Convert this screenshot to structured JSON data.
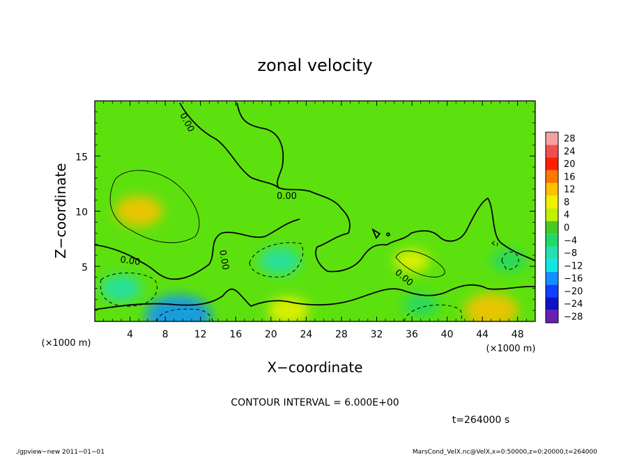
{
  "chart_data": {
    "type": "heatmap",
    "title": "zonal velocity",
    "xlabel": "X−coordinate",
    "ylabel": "Z−coordinate",
    "x_unit_label": "(×1000 m)",
    "y_unit_label": "(×1000 m)",
    "xlim": [
      0,
      50
    ],
    "ylim": [
      0,
      20
    ],
    "x_ticks": [
      "4",
      "8",
      "12",
      "16",
      "20",
      "24",
      "28",
      "32",
      "36",
      "40",
      "44",
      "48"
    ],
    "y_ticks": [
      "5",
      "10",
      "15"
    ],
    "colorbar": {
      "levels": [
        "28",
        "24",
        "20",
        "16",
        "12",
        "8",
        "4",
        "0",
        "−4",
        "−8",
        "−12",
        "−16",
        "−20",
        "−24",
        "−28"
      ],
      "colors": [
        "#f7a0a0",
        "#ee5050",
        "#ff2000",
        "#ff7800",
        "#ffc000",
        "#f0f000",
        "#c0ef00",
        "#44cc22",
        "#21d86a",
        "#22e0b0",
        "#10e6e6",
        "#1090ff",
        "#1040ff",
        "#1010c8",
        "#6a1fb0"
      ]
    },
    "contour_labels": [
      "0.00",
      "0.00",
      "0.00",
      "0.00",
      "0.00"
    ],
    "contour_interval_text": "CONTOUR INTERVAL = 6.000E+00",
    "time_text": "t=264000 s",
    "features": [
      {
        "x": 5,
        "z": 10,
        "value": 10
      },
      {
        "x": 3,
        "z": 3,
        "value": -8
      },
      {
        "x": 9.5,
        "z": 0.5,
        "value": -16
      },
      {
        "x": 21,
        "z": 5.5,
        "value": -8
      },
      {
        "x": 36,
        "z": 5.5,
        "value": 6
      },
      {
        "x": 37,
        "z": 1.5,
        "value": -6
      },
      {
        "x": 45,
        "z": 1,
        "value": 12
      },
      {
        "x": 47,
        "z": 5.5,
        "value": -6
      },
      {
        "x": 22,
        "z": 1,
        "value": 8
      }
    ]
  },
  "footer": {
    "left": "./gpview−new  2011−01−01",
    "right": "MarsCond_VelX.nc@VelX,x=0:50000,z=0:20000,t=264000"
  }
}
